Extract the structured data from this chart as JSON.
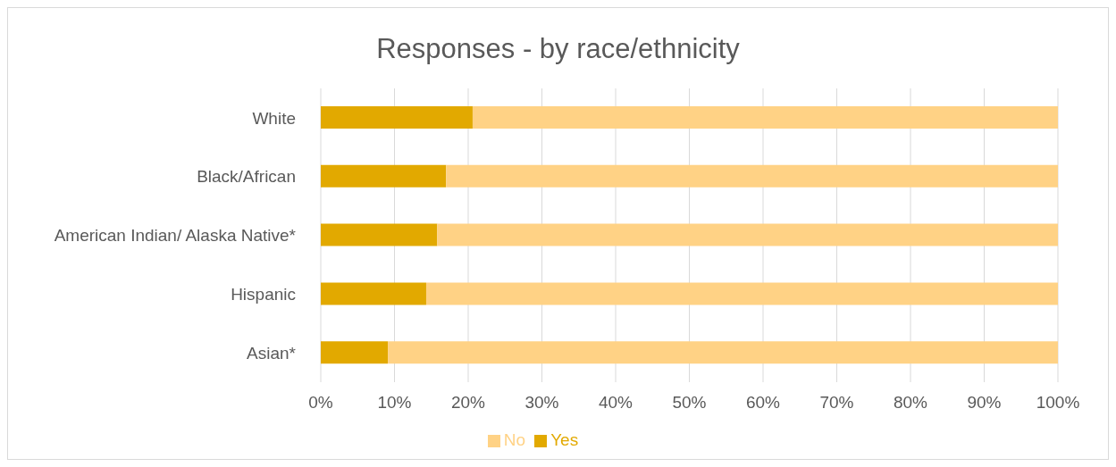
{
  "chart_data": {
    "type": "bar",
    "title": "Responses - by race/ethnicity",
    "orientation": "horizontal",
    "stacked": true,
    "categories": [
      "White",
      "Black/African",
      "American Indian/ Alaska Native*",
      "Hispanic",
      "Asian*"
    ],
    "series": [
      {
        "name": "Yes",
        "color": "#e2a900",
        "values": [
          20.6,
          17.0,
          15.8,
          14.3,
          9.1
        ]
      },
      {
        "name": "No",
        "color": "#ffd285",
        "values": [
          79.4,
          83.0,
          84.2,
          85.7,
          90.9
        ]
      }
    ],
    "xlim": [
      0,
      100
    ],
    "xticks": [
      {
        "value": 0,
        "label": "0%"
      },
      {
        "value": 10,
        "label": "10%"
      },
      {
        "value": 20,
        "label": "20%"
      },
      {
        "value": 30,
        "label": "30%"
      },
      {
        "value": 40,
        "label": "40%"
      },
      {
        "value": 50,
        "label": "50%"
      },
      {
        "value": 60,
        "label": "60%"
      },
      {
        "value": 70,
        "label": "70%"
      },
      {
        "value": 80,
        "label": "80%"
      },
      {
        "value": 90,
        "label": "90%"
      },
      {
        "value": 100,
        "label": "100%"
      }
    ],
    "grid": "x",
    "legend": "bottom"
  }
}
